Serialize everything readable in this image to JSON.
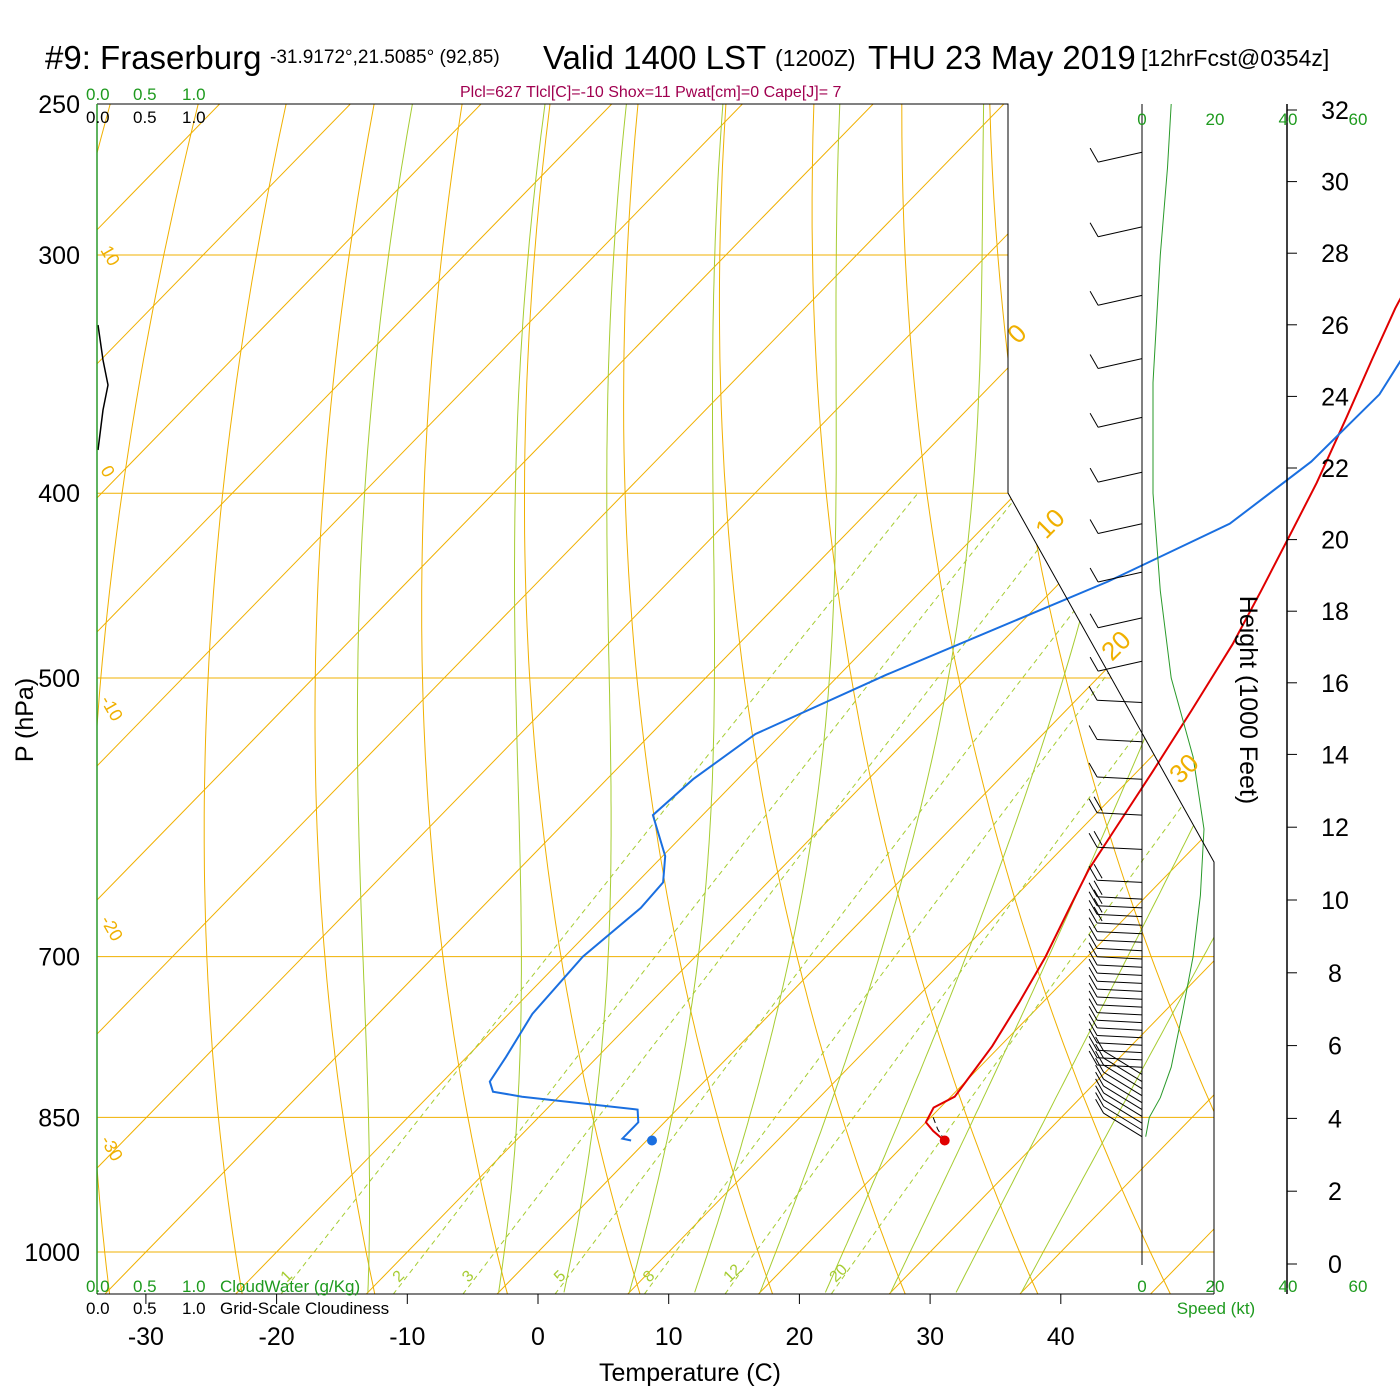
{
  "header": {
    "station": "#9: Fraserburg",
    "coords": "-31.9172°,21.5085° (92,85)",
    "valid": "Valid 1400 LST",
    "utc": "(1200Z)",
    "date": "THU 23 May 2019",
    "forecast": "[12hrFcst@0354z]"
  },
  "params_line": "Plcl=627 Tlcl[C]=-10 Shox=11 Pwat[cm]=0 Cape[J]= 7",
  "left_scale": {
    "top_green": [
      "0.0",
      "0.5",
      "1.0"
    ],
    "top_black": [
      "0.0",
      "0.5",
      "1.0"
    ],
    "bottom_green": [
      "0.0",
      "0.5",
      "1.0"
    ],
    "bottom_black": [
      "0.0",
      "0.5",
      "1.0"
    ],
    "cloudwater_label": "CloudWater (g/Kg)",
    "cloudiness_label": "Grid-Scale Cloudiness"
  },
  "speed_axis": {
    "ticks": [
      "0",
      "20",
      "40",
      "60"
    ],
    "label": "Speed (kt)"
  },
  "colors": {
    "isotherm": "#f0b000",
    "dry_adiabat": "#f0b000",
    "moist_adiabat": "#a6cc32",
    "mixing_ratio": "#a6cc32",
    "temperature": "#e00000",
    "dewpoint": "#1a6fe0",
    "speed": "#2a9a2a",
    "wind_barb": "#000000"
  },
  "chart_data": {
    "type": "line",
    "title": "#9: Fraserburg Valid 1400 LST (1200Z) THU 23 May 2019",
    "xlabel": "Temperature (C)",
    "ylabel": "P (hPa)",
    "y2label": "Height (1000 Feet)",
    "xlim": [
      -33,
      36
    ],
    "ylim": [
      1050,
      250
    ],
    "yscale": "log",
    "x_ticks": [
      -30,
      -20,
      -10,
      0,
      10,
      20,
      30,
      40
    ],
    "pressure_ticks": [
      1000,
      850,
      700,
      500,
      400,
      300,
      250
    ],
    "height_ticks": [
      0,
      2,
      4,
      6,
      8,
      10,
      12,
      14,
      16,
      18,
      20,
      22,
      24,
      26,
      28,
      30,
      32
    ],
    "isotherm_labels": [
      "10",
      "0",
      "-10",
      "-20",
      "-30",
      "0",
      "10",
      "20",
      "30"
    ],
    "mixing_ratio_labels": [
      "1",
      "2",
      "3",
      "5",
      "8",
      "12",
      "20"
    ],
    "series": [
      {
        "name": "Temperature",
        "points": [
          [
            22.6,
            873
          ],
          [
            21.2,
            864
          ],
          [
            20.0,
            855
          ],
          [
            19.5,
            840
          ],
          [
            20.3,
            829
          ],
          [
            20.0,
            812
          ],
          [
            19.4,
            780
          ],
          [
            18.2,
            740
          ],
          [
            16.8,
            700
          ],
          [
            15.0,
            660
          ],
          [
            13.6,
            630
          ],
          [
            12.6,
            600
          ],
          [
            11.2,
            560
          ],
          [
            9.6,
            520
          ],
          [
            7.8,
            480
          ],
          [
            6.0,
            450
          ],
          [
            4.0,
            420
          ],
          [
            2.2,
            395
          ],
          [
            -0.4,
            365
          ],
          [
            -2.8,
            340
          ],
          [
            -4.8,
            320
          ],
          [
            -6.6,
            300
          ],
          [
            -8.4,
            283
          ],
          [
            -9.6,
            270
          ],
          [
            -10.6,
            259
          ],
          [
            -11.2,
            253
          ]
        ]
      },
      {
        "name": "Dewpoint",
        "points": [
          [
            -1.2,
            874
          ],
          [
            -2.0,
            872
          ],
          [
            -2.0,
            855
          ],
          [
            -3.0,
            842
          ],
          [
            -12.8,
            829
          ],
          [
            -15.4,
            824
          ],
          [
            -16.4,
            814
          ],
          [
            -17.0,
            790
          ],
          [
            -18.2,
            750
          ],
          [
            -18.6,
            700
          ],
          [
            -17.8,
            660
          ],
          [
            -18.0,
            640
          ],
          [
            -19.8,
            620
          ],
          [
            -23.8,
            590
          ],
          [
            -23.4,
            565
          ],
          [
            -22.0,
            535
          ],
          [
            -16.4,
            498
          ],
          [
            -6.4,
            445
          ],
          [
            -1.4,
            415
          ],
          [
            0.2,
            385
          ],
          [
            0.4,
            355
          ],
          [
            -2.0,
            318
          ],
          [
            -3.8,
            299
          ],
          [
            -4.2,
            285
          ],
          [
            -4.6,
            270
          ],
          [
            -4.8,
            255
          ]
        ]
      }
    ],
    "surface_dewpoint": [
      0.4,
      874
    ],
    "surface_temperature": [
      22.8,
      874
    ],
    "wind_speed_kt": [
      [
        1,
        870
      ],
      [
        2,
        850
      ],
      [
        5,
        830
      ],
      [
        8,
        800
      ],
      [
        11,
        750
      ],
      [
        14,
        700
      ],
      [
        16,
        650
      ],
      [
        17,
        600
      ],
      [
        14,
        550
      ],
      [
        8,
        500
      ],
      [
        5,
        450
      ],
      [
        3,
        400
      ],
      [
        3,
        350
      ],
      [
        5,
        300
      ],
      [
        7,
        270
      ],
      [
        8,
        250
      ]
    ]
  }
}
